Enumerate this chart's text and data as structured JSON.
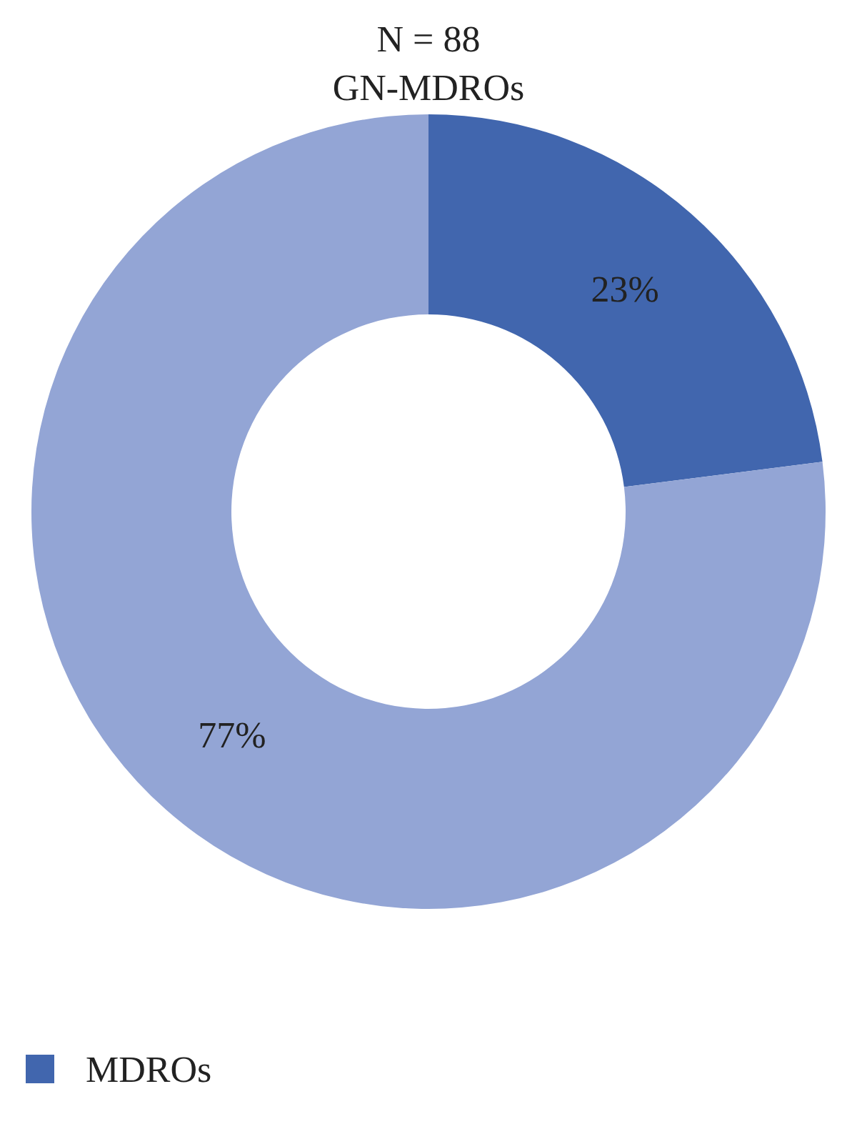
{
  "chart_data": {
    "type": "donut",
    "title": "N = 88",
    "subtitle": "GN-MDROs",
    "categories": [
      "MDROs",
      null
    ],
    "values": [
      23,
      77
    ],
    "colors": [
      "#4166ae",
      "#93a5d5"
    ],
    "value_labels": [
      "23%",
      "77%"
    ],
    "legend": "bottom left"
  }
}
